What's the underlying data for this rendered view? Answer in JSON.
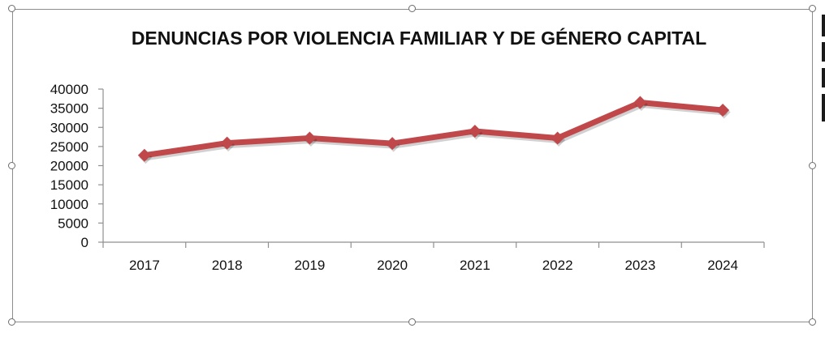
{
  "chart_data": {
    "type": "line",
    "title": "DENUNCIAS POR VIOLENCIA FAMILIAR Y DE GÉNERO CAPITAL",
    "xlabel": "",
    "ylabel": "",
    "categories": [
      "2017",
      "2018",
      "2019",
      "2020",
      "2021",
      "2022",
      "2023",
      "2024"
    ],
    "series": [
      {
        "values": [
          22700,
          25900,
          27200,
          25800,
          29000,
          27200,
          36500,
          34500
        ],
        "color": "#c0484a"
      }
    ],
    "ylim": [
      0,
      40000
    ],
    "y_ticks": [
      "0",
      "5000",
      "10000",
      "15000",
      "20000",
      "25000",
      "30000",
      "35000",
      "40000"
    ],
    "grid": false,
    "legend": "none",
    "marker": "diamond"
  }
}
